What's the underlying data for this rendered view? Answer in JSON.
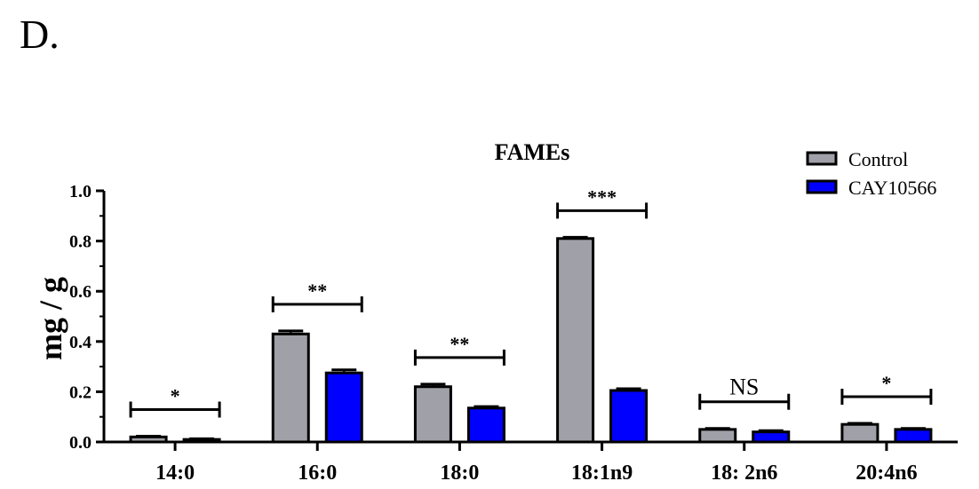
{
  "panel_label": "D.",
  "chart_data": {
    "type": "bar",
    "title": "FAMEs",
    "xlabel": "",
    "ylabel": "mg / g",
    "ylim": [
      0,
      1.0
    ],
    "yticks": [
      "0.0",
      "0.2",
      "0.4",
      "0.6",
      "0.8",
      "1.0"
    ],
    "categories": [
      "14:0",
      "16:0",
      "18:0",
      "18:1n9",
      "18: 2n6",
      "20:4n6"
    ],
    "series": [
      {
        "name": "Control",
        "color": "#a0a0a8",
        "values": [
          0.02,
          0.43,
          0.22,
          0.81,
          0.05,
          0.07
        ],
        "errors": [
          0.003,
          0.012,
          0.01,
          0.005,
          0.004,
          0.004
        ]
      },
      {
        "name": "CAY10566",
        "color": "#0000ff",
        "values": [
          0.01,
          0.275,
          0.135,
          0.205,
          0.04,
          0.05
        ],
        "errors": [
          0.003,
          0.012,
          0.006,
          0.007,
          0.005,
          0.004
        ]
      }
    ],
    "significance": [
      "*",
      "**",
      "**",
      "***",
      "NS",
      "*"
    ],
    "legend_position": "top-right"
  }
}
